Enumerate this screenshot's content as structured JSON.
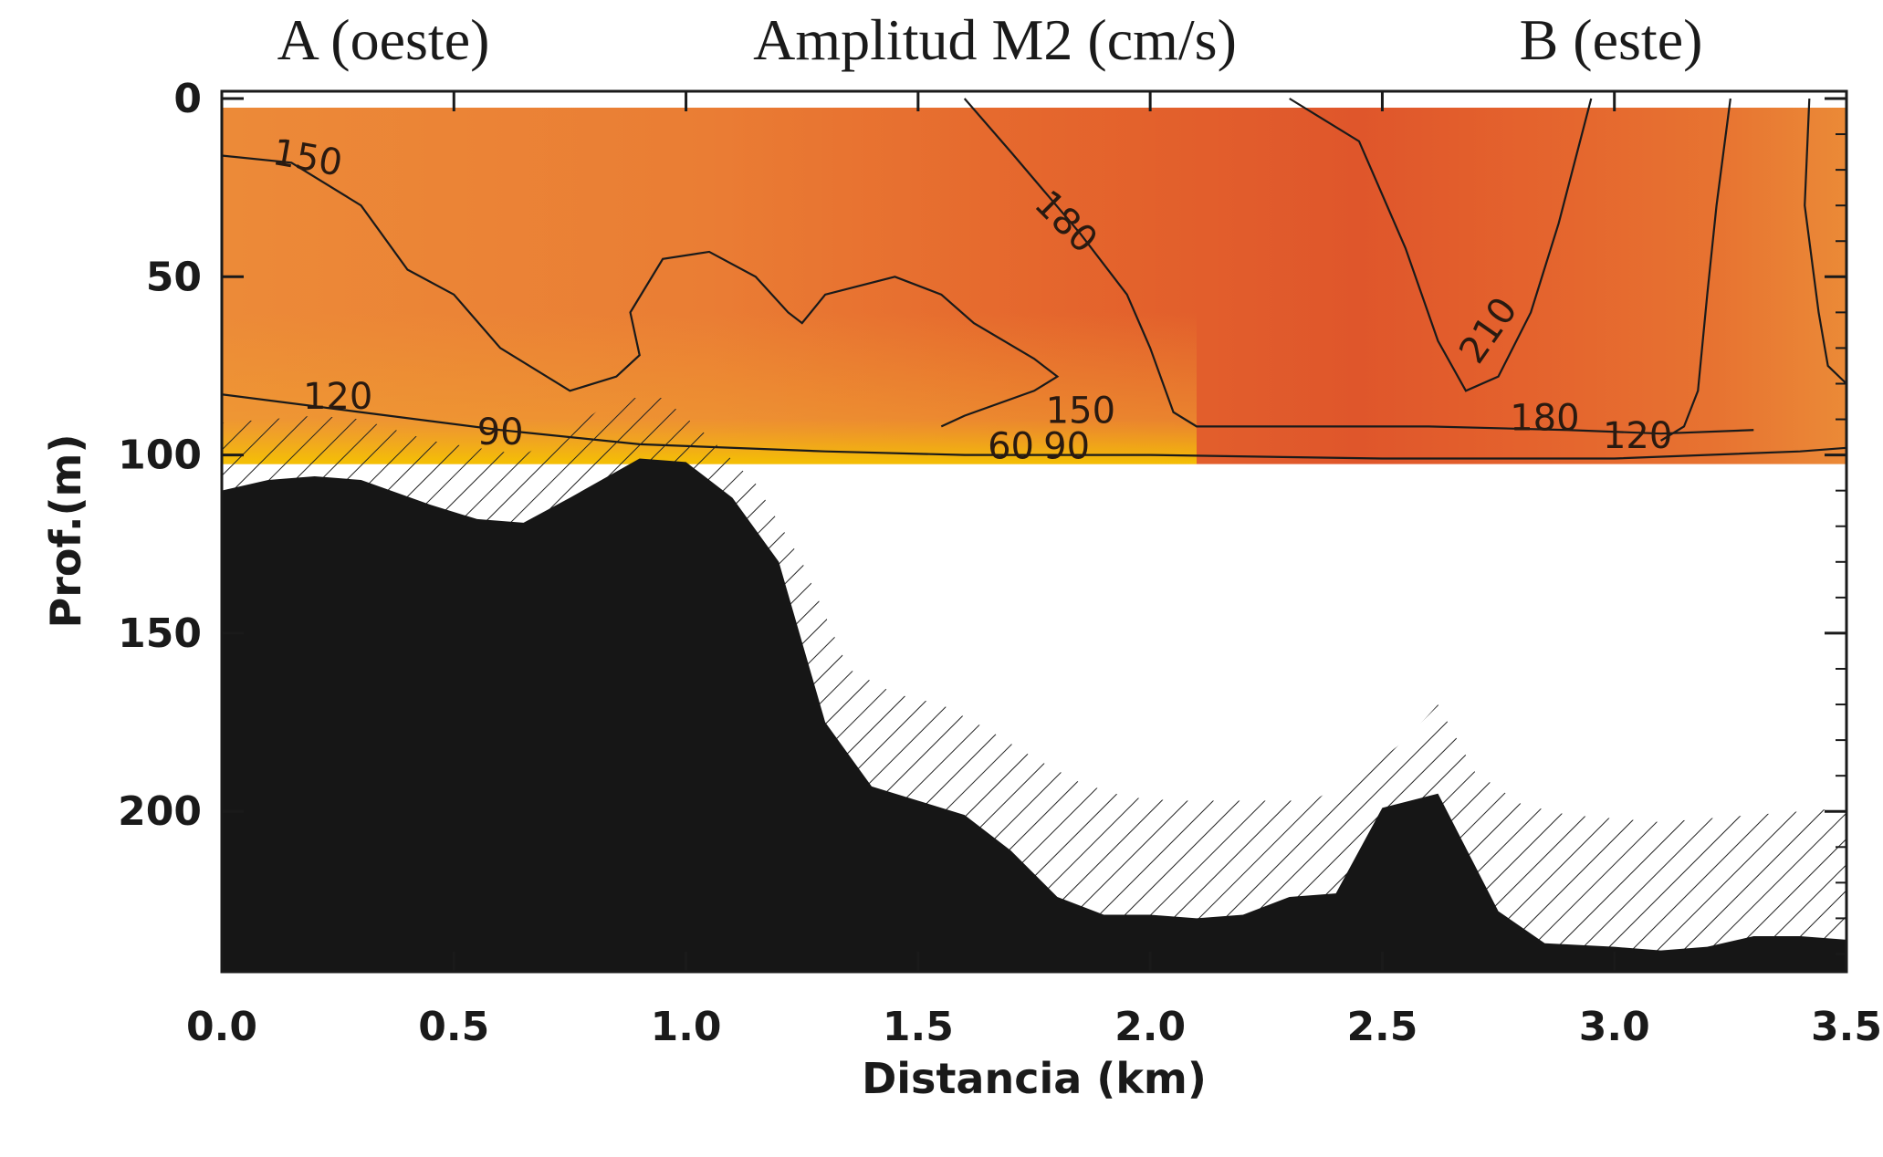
{
  "chart_data": {
    "type": "heatmap",
    "title": "Amplitud M2 (cm/s)",
    "left_label": "A (oeste)",
    "right_label": "B (este)",
    "xlabel": "Distancia (km)",
    "ylabel": "Prof.(m)",
    "xlim": [
      0.0,
      3.5
    ],
    "ylim": [
      0,
      245
    ],
    "y_inverted": true,
    "x_ticks": [
      "0.0",
      "0.5",
      "1.0",
      "1.5",
      "2.0",
      "2.5",
      "3.0",
      "3.5"
    ],
    "y_ticks": [
      "0",
      "50",
      "100",
      "150",
      "200"
    ],
    "contour_labels": [
      {
        "text": "150",
        "x": 0.18,
        "y": 20,
        "angle": 10
      },
      {
        "text": "180",
        "x": 1.8,
        "y": 37,
        "angle": 45
      },
      {
        "text": "210",
        "x": 2.75,
        "y": 67,
        "angle": -55
      },
      {
        "text": "120",
        "x": 0.25,
        "y": 87,
        "angle": 0
      },
      {
        "text": "90",
        "x": 0.6,
        "y": 97,
        "angle": 0
      },
      {
        "text": "150",
        "x": 1.85,
        "y": 91,
        "angle": 0
      },
      {
        "text": "60",
        "x": 1.7,
        "y": 101,
        "angle": 0
      },
      {
        "text": "90",
        "x": 1.82,
        "y": 101,
        "angle": 0
      },
      {
        "text": "180",
        "x": 2.85,
        "y": 93,
        "angle": 0
      },
      {
        "text": "120",
        "x": 3.05,
        "y": 98,
        "angle": 0
      }
    ],
    "contour_levels": [
      60,
      90,
      120,
      150,
      180,
      210
    ],
    "data_depth_m": 100,
    "bathymetry": {
      "x": [
        0.0,
        0.1,
        0.2,
        0.3,
        0.45,
        0.55,
        0.65,
        0.75,
        0.9,
        1.0,
        1.1,
        1.2,
        1.3,
        1.4,
        1.5,
        1.6,
        1.7,
        1.8,
        1.9,
        2.0,
        2.1,
        2.2,
        2.3,
        2.4,
        2.5,
        2.62,
        2.75,
        2.85,
        3.0,
        3.1,
        3.2,
        3.3,
        3.4,
        3.5
      ],
      "y": [
        110,
        107,
        106,
        107,
        114,
        118,
        119,
        112,
        101,
        102,
        112,
        130,
        175,
        193,
        197,
        201,
        211,
        224,
        229,
        229,
        230,
        229,
        224,
        223,
        199,
        195,
        228,
        237,
        238,
        239,
        238,
        235,
        235,
        236
      ]
    },
    "hatch_top": {
      "x": [
        0.0,
        0.1,
        0.2,
        0.3,
        0.45,
        0.55,
        0.65,
        0.75,
        0.85,
        0.95,
        1.05,
        1.15,
        1.25,
        1.35,
        1.45,
        1.55,
        1.65,
        1.75,
        1.85,
        1.95,
        2.05,
        2.15,
        2.25,
        2.35,
        2.45,
        2.55,
        2.62,
        2.7,
        2.8,
        2.9,
        3.0,
        3.1,
        3.2,
        3.3,
        3.4,
        3.5
      ],
      "y": [
        91,
        90,
        89,
        90,
        96,
        98,
        100,
        93,
        84,
        84,
        95,
        108,
        130,
        160,
        167,
        170,
        177,
        185,
        192,
        196,
        197,
        197,
        197,
        197,
        190,
        180,
        170,
        189,
        198,
        201,
        202,
        203,
        202,
        201,
        200,
        199
      ]
    },
    "grid": false,
    "legend": "none",
    "colors": {
      "low": "#f5c400",
      "mid": "#eb8a37",
      "high": "#dd582b",
      "seafloor": "#161616"
    }
  }
}
